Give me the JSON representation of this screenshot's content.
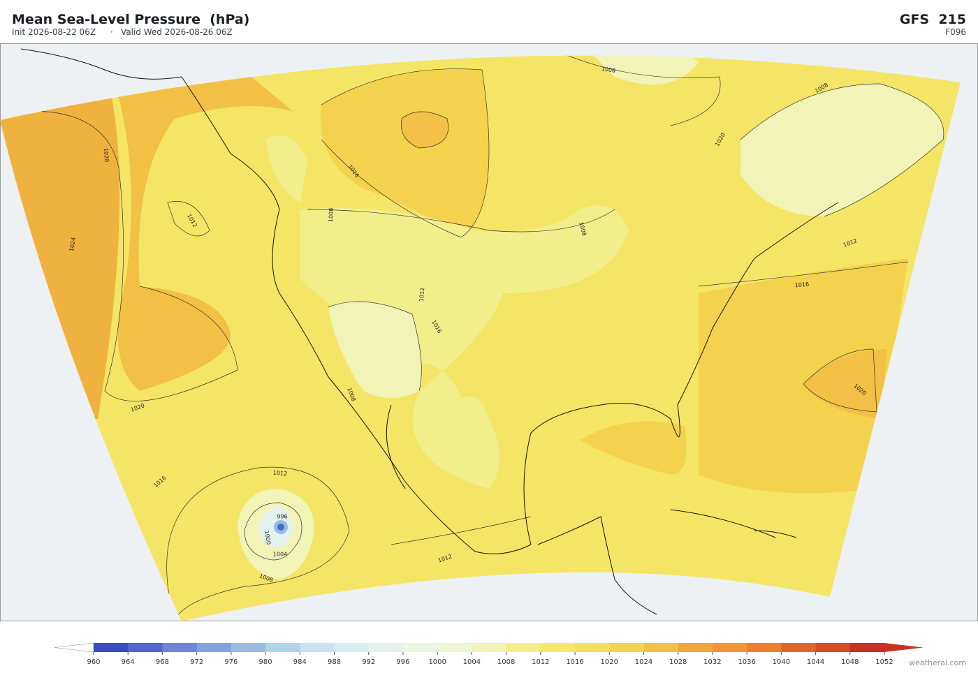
{
  "header": {
    "title": "Mean Sea-Level Pressure  (hPa)",
    "init": "Init 2026-08-22 06Z",
    "separator": "·",
    "valid": "Valid Wed 2026-08-26 06Z",
    "model": "GFS  215",
    "forecast_hour": "F096"
  },
  "map": {
    "contour_labels": [
      "1008",
      "1008",
      "1020",
      "1016",
      "1020",
      "1012",
      "1024",
      "1008",
      "1008",
      "1012",
      "1016",
      "1012",
      "1016",
      "1020",
      "1008",
      "1020",
      "1016",
      "1012",
      "996",
      "1000",
      "1004",
      "1008",
      "1012"
    ]
  },
  "colorbar": {
    "ticks": [
      960,
      964,
      968,
      972,
      976,
      980,
      984,
      988,
      992,
      996,
      1000,
      1004,
      1008,
      1012,
      1016,
      1020,
      1024,
      1028,
      1032,
      1036,
      1040,
      1044,
      1048,
      1052
    ],
    "colors": [
      "#3b4cc0",
      "#5068cc",
      "#6a88d6",
      "#7fa3dc",
      "#98bde3",
      "#b2d2ea",
      "#c9e2ee",
      "#d9ecef",
      "#e3f2ec",
      "#eaf5e4",
      "#eef6d4",
      "#f2f3b6",
      "#f3ee8c",
      "#f5e868",
      "#f4df58",
      "#f4d24e",
      "#f2c044",
      "#f0aa3c",
      "#ee9636",
      "#ea8030",
      "#e2662c",
      "#d84c28",
      "#c83224"
    ]
  },
  "footer": {
    "watermark": "weatherai.com"
  }
}
